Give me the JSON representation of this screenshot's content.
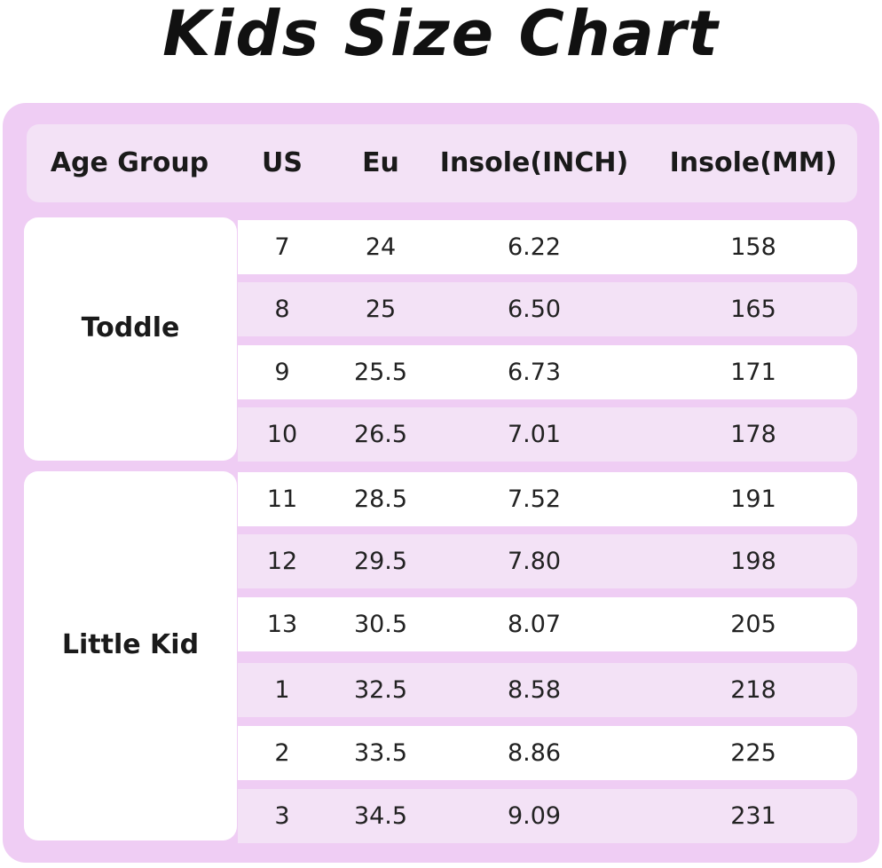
{
  "title": "Kids Size Chart",
  "headers": {
    "age_group": "Age Group",
    "us": "US",
    "eu": "Eu",
    "insole_inch": "Insole(INCH)",
    "insole_mm": "Insole(MM)"
  },
  "groups": [
    {
      "label": "Toddle"
    },
    {
      "label": "Little Kid"
    }
  ],
  "rows": [
    {
      "us": "7",
      "eu": "24",
      "inch": "6.22",
      "mm": "158"
    },
    {
      "us": "8",
      "eu": "25",
      "inch": "6.50",
      "mm": "165"
    },
    {
      "us": "9",
      "eu": "25.5",
      "inch": "6.73",
      "mm": "171"
    },
    {
      "us": "10",
      "eu": "26.5",
      "inch": "7.01",
      "mm": "178"
    },
    {
      "us": "11",
      "eu": "28.5",
      "inch": "7.52",
      "mm": "191"
    },
    {
      "us": "12",
      "eu": "29.5",
      "inch": "7.80",
      "mm": "198"
    },
    {
      "us": "13",
      "eu": "30.5",
      "inch": "8.07",
      "mm": "205"
    },
    {
      "us": "1",
      "eu": "32.5",
      "inch": "8.58",
      "mm": "218"
    },
    {
      "us": "2",
      "eu": "33.5",
      "inch": "8.86",
      "mm": "225"
    },
    {
      "us": "3",
      "eu": "34.5",
      "inch": "9.09",
      "mm": "231"
    }
  ],
  "colors": {
    "panel": "#efcdf4",
    "row_alt": "#f3e2f6",
    "row_white": "#ffffff",
    "text": "#1a1a1a"
  }
}
